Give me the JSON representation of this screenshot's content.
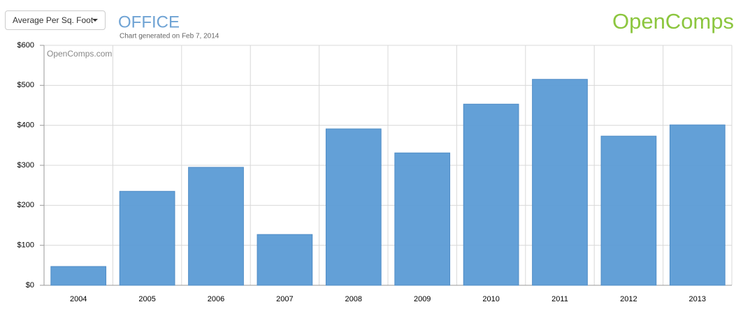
{
  "dropdown": {
    "label": "Average Per Sq. Foot"
  },
  "logo": "OpenComps",
  "chart_data": {
    "type": "bar",
    "title": "OFFICE",
    "subtitle": "Chart generated on Feb 7, 2014",
    "watermark": "OpenComps.com",
    "categories": [
      "2004",
      "2005",
      "2006",
      "2007",
      "2008",
      "2009",
      "2010",
      "2011",
      "2012",
      "2013"
    ],
    "values": [
      47,
      235,
      295,
      127,
      391,
      331,
      453,
      515,
      373,
      401
    ],
    "color": "#5b9bd5",
    "ylim": [
      0,
      600
    ],
    "yticks": [
      {
        "value": 0,
        "label": "$0"
      },
      {
        "value": 100,
        "label": "$100"
      },
      {
        "value": 200,
        "label": "$200"
      },
      {
        "value": 300,
        "label": "$300"
      },
      {
        "value": 400,
        "label": "$400"
      },
      {
        "value": 500,
        "label": "$500"
      },
      {
        "value": 600,
        "label": "$600"
      }
    ],
    "grid": true
  }
}
